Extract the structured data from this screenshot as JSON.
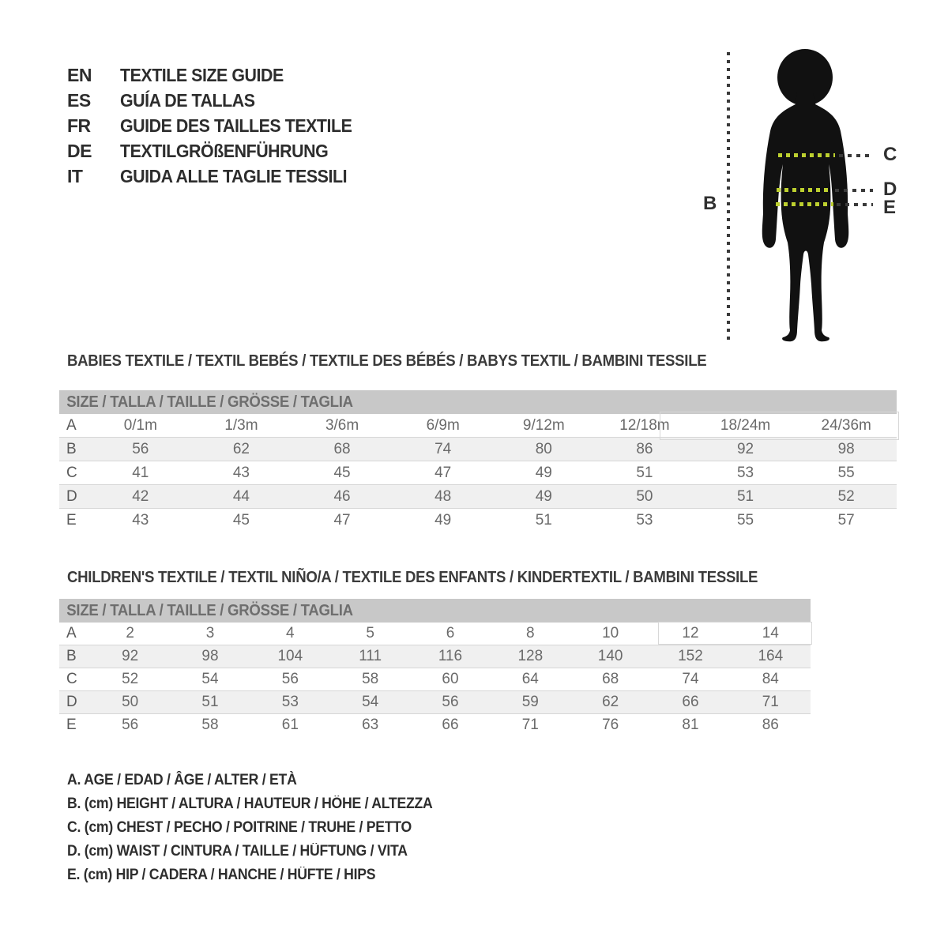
{
  "languages": {
    "title_rows": [
      {
        "code": "EN",
        "label": "TEXTILE SIZE GUIDE"
      },
      {
        "code": "ES",
        "label": "GUÍA DE TALLAS"
      },
      {
        "code": "FR",
        "label": "GUIDE DES TAILLES TEXTILE"
      },
      {
        "code": "DE",
        "label": "TEXTILGRÖßENFÜHRUNG"
      },
      {
        "code": "IT",
        "label": "GUIDA ALLE TAGLIE TESSILI"
      }
    ]
  },
  "figure": {
    "labels": {
      "height": "B",
      "chest": "C",
      "waist": "D",
      "hip": "E"
    }
  },
  "babies_table": {
    "heading": "BABIES TEXTILE / TEXTIL BEBÉS / TEXTILE DES BÉBÉS / BABYS TEXTIL / BAMBINI TESSILE",
    "header": "SIZE / TALLA / TAILLE / GRÖSSE / TAGLIA",
    "rows": [
      [
        "A",
        "0/1m",
        "1/3m",
        "3/6m",
        "6/9m",
        "9/12m",
        "12/18m",
        "18/24m",
        "24/36m"
      ],
      [
        "B",
        "56",
        "62",
        "68",
        "74",
        "80",
        "86",
        "92",
        "98"
      ],
      [
        "C",
        "41",
        "43",
        "45",
        "47",
        "49",
        "51",
        "53",
        "55"
      ],
      [
        "D",
        "42",
        "44",
        "46",
        "48",
        "49",
        "50",
        "51",
        "52"
      ],
      [
        "E",
        "43",
        "45",
        "47",
        "49",
        "51",
        "53",
        "55",
        "57"
      ]
    ]
  },
  "children_table": {
    "heading": "CHILDREN'S TEXTILE / TEXTIL NIÑO/A / TEXTILE DES ENFANTS / KINDERTEXTIL / BAMBINI TESSILE",
    "header": "SIZE / TALLA / TAILLE / GRÖSSE / TAGLIA",
    "rows": [
      [
        "A",
        "2",
        "3",
        "4",
        "5",
        "6",
        "8",
        "10",
        "12",
        "14"
      ],
      [
        "B",
        "92",
        "98",
        "104",
        "111",
        "116",
        "128",
        "140",
        "152",
        "164"
      ],
      [
        "C",
        "52",
        "54",
        "56",
        "58",
        "60",
        "64",
        "68",
        "74",
        "84"
      ],
      [
        "D",
        "50",
        "51",
        "53",
        "54",
        "56",
        "59",
        "62",
        "66",
        "71"
      ],
      [
        "E",
        "56",
        "58",
        "61",
        "63",
        "66",
        "71",
        "76",
        "81",
        "86"
      ]
    ]
  },
  "legend": {
    "items": [
      "A. AGE / EDAD / ÂGE / ALTER / ETÀ",
      "B. (cm) HEIGHT / ALTURA / HAUTEUR / HÖHE / ALTEZZA",
      "C. (cm) CHEST / PECHO / POITRINE / TRUHE / PETTO",
      "D. (cm) WAIST / CINTURA / TAILLE / HÜFTUNG / VITA",
      "E. (cm) HIP / CADERA / HANCHE / HÜFTE / HIPS"
    ]
  },
  "colors": {
    "header_bar": "#c8c8c8",
    "zebra_row": "#f0f0f0",
    "accent_green": "#bdd02f",
    "silhouette": "#111111",
    "measure_line": "#3a3a3a"
  }
}
